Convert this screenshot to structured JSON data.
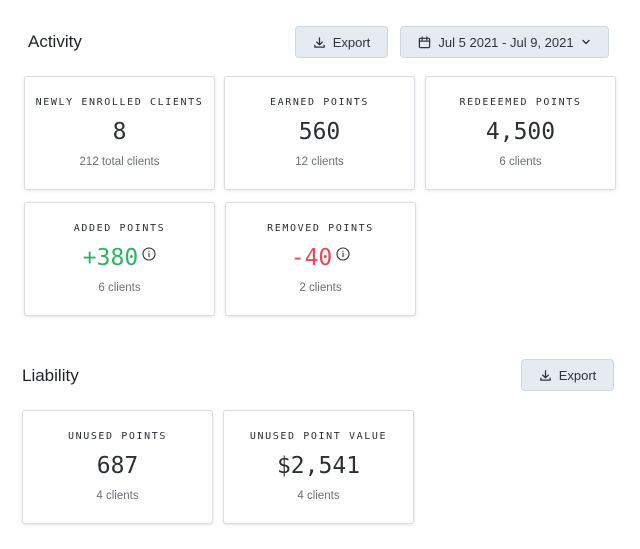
{
  "activity": {
    "title": "Activity",
    "export_label": "Export",
    "date_range": "Jul 5 2021 - Jul 9, 2021",
    "cards": [
      {
        "label": "NEWLY ENROLLED CLIENTS",
        "value": "8",
        "sub": "212 total clients"
      },
      {
        "label": "EARNED POINTS",
        "value": "560",
        "sub": "12 clients"
      },
      {
        "label": "REDEEEMED POINTS",
        "value": "4,500",
        "sub": "6 clients"
      },
      {
        "label": "ADDED POINTS",
        "value": "+380",
        "sub": "6 clients"
      },
      {
        "label": "REMOVED POINTS",
        "value": "-40",
        "sub": "2 clients"
      }
    ]
  },
  "liability": {
    "title": "Liability",
    "export_label": "Export",
    "cards": [
      {
        "label": "UNUSED POINTS",
        "value": "687",
        "sub": "4 clients"
      },
      {
        "label": "UNUSED POINT VALUE",
        "value": "$2,541",
        "sub": "4 clients"
      }
    ]
  },
  "colors": {
    "positive": "#2eb366",
    "negative": "#e8475c",
    "button_bg": "#e6ebf1"
  },
  "icons": {
    "export": "download-icon",
    "date": "calendar-icon",
    "dropdown": "chevron-down-icon",
    "info": "info-icon"
  }
}
